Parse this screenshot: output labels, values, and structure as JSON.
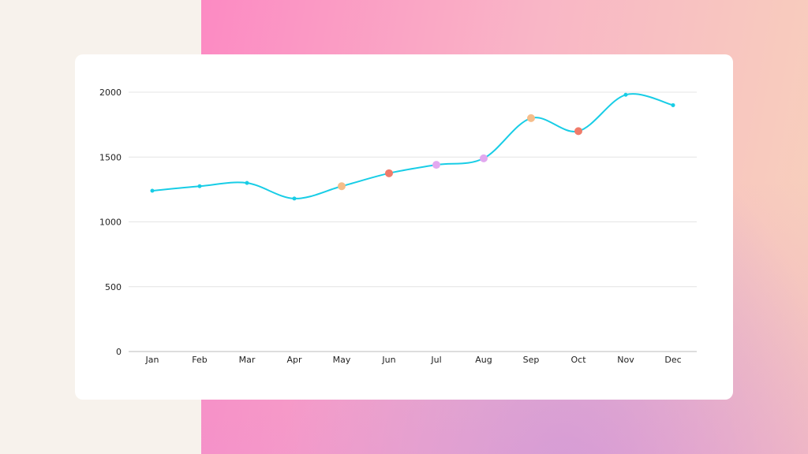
{
  "chart_data": {
    "type": "line",
    "categories": [
      "Jan",
      "Feb",
      "Mar",
      "Apr",
      "May",
      "Jun",
      "Jul",
      "Aug",
      "Sep",
      "Oct",
      "Nov",
      "Dec"
    ],
    "values": [
      1240,
      1275,
      1300,
      1180,
      1275,
      1375,
      1440,
      1490,
      1800,
      1700,
      1980,
      1900
    ],
    "ylim": [
      0,
      2000
    ],
    "yticks": [
      0,
      500,
      1000,
      1500,
      2000
    ],
    "grid": true,
    "line_color": "#18cde6",
    "point_colors": [
      "#18cde6",
      "#18cde6",
      "#18cde6",
      "#18cde6",
      "#f5bd8a",
      "#f07b6a",
      "#e2a8ef",
      "#e2a8ef",
      "#f5bd8a",
      "#f07b6a",
      "#18cde6",
      "#18cde6"
    ],
    "curve": "smooth"
  }
}
